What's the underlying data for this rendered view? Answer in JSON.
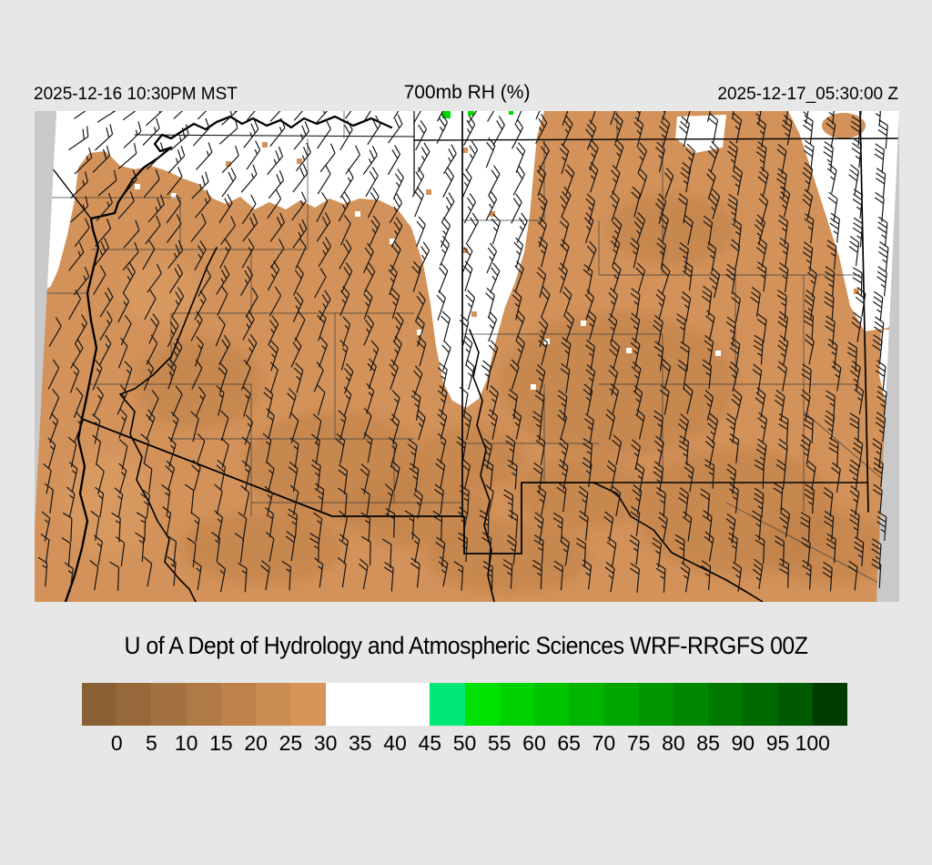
{
  "header": {
    "valid_local": "2025-12-16 10:30PM MST",
    "title": "700mb RH (%)",
    "valid_utc": "2025-12-17_05:30:00 Z"
  },
  "caption": {
    "text": "U of A Dept of Hydrology and Atmospheric Sciences WRF-RRGFS 00Z"
  },
  "colorbar": {
    "unit": "%",
    "tick_labels": [
      "0",
      "5",
      "10",
      "15",
      "20",
      "25",
      "30",
      "35",
      "40",
      "45",
      "50",
      "55",
      "60",
      "65",
      "70",
      "75",
      "80",
      "85",
      "90",
      "95",
      "100"
    ],
    "segment_colors": [
      "#8a6134",
      "#97693a",
      "#a37140",
      "#b07a46",
      "#bd834b",
      "#ca8c51",
      "#d79557",
      "#ffffff",
      "#ffffff",
      "#ffffff",
      "#00e878",
      "#00e100",
      "#00d200",
      "#00c300",
      "#00b400",
      "#00a500",
      "#009600",
      "#008700",
      "#007800",
      "#006900",
      "#005a00",
      "#003c00"
    ]
  },
  "map": {
    "colors": {
      "outside_domain": "#c9c9c9",
      "rh_low_brown": "#d2925a",
      "rh_low_brown_dark": "#bd7f47",
      "rh_low_brown_light": "#dd9f66",
      "rh_mid_white": "#ffffff",
      "rh_high_green_speck": "#00d800",
      "state_border": "#000000",
      "county_line": "#3d3d3d",
      "wind_barb": "#151515"
    }
  },
  "chart_data": {
    "type": "heatmap",
    "title": "700mb RH (%)",
    "colorbar_range": [
      0,
      100
    ],
    "colorbar_step": 5,
    "shading_note": "RH 0-30 brown shades over most of domain, RH 30-45 white over northern areas, small RH>45 green specks at top edge"
  }
}
